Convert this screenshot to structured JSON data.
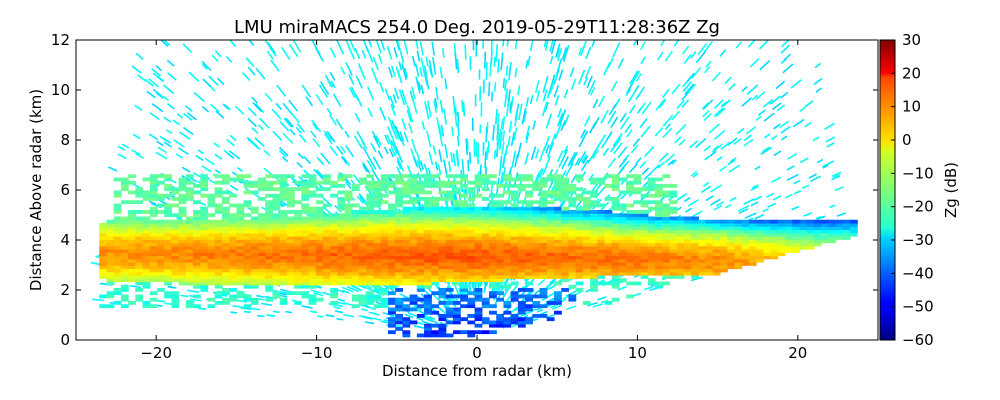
{
  "chart_data": {
    "type": "heatmap",
    "title": "LMU miraMACS 254.0 Deg. 2019-05-29T11:28:36Z  Zg",
    "xlabel": "Distance from radar (km)",
    "ylabel": "Distance Above radar  (km)",
    "xlim": [
      -25,
      25
    ],
    "ylim": [
      0,
      12
    ],
    "xticks": [
      -20,
      -10,
      0,
      10,
      20
    ],
    "xtick_labels": [
      "−20",
      "−10",
      "0",
      "10",
      "20"
    ],
    "yticks": [
      0,
      2,
      4,
      6,
      8,
      10,
      12
    ],
    "ytick_labels": [
      "0",
      "2",
      "4",
      "6",
      "8",
      "10",
      "12"
    ],
    "grid": false,
    "colorbar": {
      "label": "Zg (dB)",
      "range": [
        -60,
        30
      ],
      "colormap": "jet",
      "ticks": [
        -60,
        -50,
        -40,
        -30,
        -20,
        -10,
        0,
        10,
        20,
        30
      ],
      "tick_labels": [
        "−60",
        "−50",
        "−40",
        "−30",
        "−20",
        "−10",
        "0",
        "10",
        "20",
        "30"
      ]
    },
    "scan": {
      "geometry": "RHI",
      "max_range_km": 24,
      "min_elevation_deg": 10
    },
    "features": [
      {
        "name": "noise-speckle",
        "zg_db": -27,
        "height_km": [
          0.5,
          12
        ]
      },
      {
        "name": "upper-cloud-layer",
        "zg_db": -18,
        "height_km": [
          5.2,
          6.6
        ]
      },
      {
        "name": "main-precip-layer",
        "zg_db": 3,
        "height_km": [
          2.4,
          5.2
        ],
        "peak_zg_db": 12
      },
      {
        "name": "near-radar-weak-echo",
        "zg_db": -45,
        "height_km": [
          0,
          2
        ]
      }
    ]
  }
}
